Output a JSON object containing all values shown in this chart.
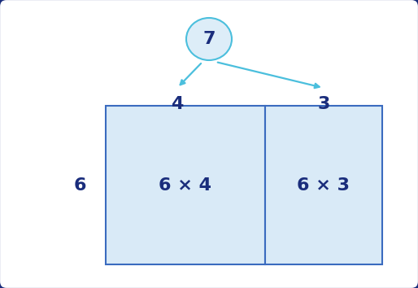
{
  "bg_color": "#ffffff",
  "border_color": "#1a2d7c",
  "box_fill_color": "#d9eaf7",
  "box_edge_color": "#3a6bbf",
  "divider_color": "#3a6bbf",
  "arrow_color": "#4bbfdd",
  "text_color_dark": "#1a2d7c",
  "ellipse_fill": "#ddedf8",
  "ellipse_edge": "#4bbfdd",
  "total_number": "7",
  "left_number": "4",
  "right_number": "3",
  "side_number": "6",
  "left_label": "6 × 4",
  "right_label": "6 × 3",
  "figwidth": 5.14,
  "figheight": 3.54,
  "dpi": 100
}
